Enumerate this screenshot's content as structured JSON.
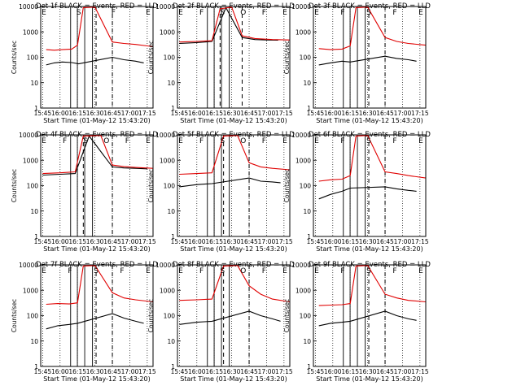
{
  "colors": {
    "events": "#000000",
    "lld": "#e00000",
    "background": "#ffffff"
  },
  "x_ticks": [
    "15:45",
    "16:00",
    "16:15",
    "16:30",
    "16:45",
    "17:00",
    "17:15"
  ],
  "y_ticks": [
    "1",
    "10",
    "100",
    "1000",
    "10000"
  ],
  "chart_data": [
    {
      "type": "line",
      "title": "Det 1f BLACK = Events, RED = LLD",
      "xlabel": "Start Time (01-May-12 15:43:20)",
      "ylabel": "Counts/sec",
      "xlim": [
        "15:43:20",
        "17:20:00"
      ],
      "ylim": [
        1,
        10000
      ],
      "yscale": "log",
      "annotations": [
        "E",
        "S",
        "F",
        "E"
      ],
      "dashed_markers": [
        "16:31",
        "16:45"
      ],
      "series": [
        {
          "name": "Events",
          "color": "#000000",
          "x": [
            "15:48",
            "15:55",
            "16:02",
            "16:10",
            "16:16",
            "16:45",
            "16:55",
            "17:05",
            "17:12"
          ],
          "y": [
            50,
            60,
            65,
            62,
            55,
            100,
            80,
            70,
            60
          ]
        },
        {
          "name": "LLD",
          "color": "#e00000",
          "x": [
            "15:48",
            "15:55",
            "16:02",
            "16:10",
            "16:15",
            "16:20",
            "16:30",
            "16:45",
            "16:55",
            "17:05",
            "17:15",
            "17:20"
          ],
          "y": [
            200,
            190,
            200,
            210,
            300,
            9000,
            9500,
            400,
            350,
            320,
            280,
            260
          ]
        }
      ]
    },
    {
      "type": "line",
      "title": "Det 2f BLACK = Events, RED = LLD",
      "xlabel": "Start Time (01-May-12 15:43:20)",
      "ylabel": "Counts/sec",
      "xlim": [
        "15:43:20",
        "17:20:00"
      ],
      "ylim": [
        1,
        10000
      ],
      "yscale": "log",
      "annotations": [
        "E",
        "F",
        "S",
        "O",
        "F",
        "E"
      ],
      "dashed_markers": [
        "16:20",
        "16:39"
      ],
      "series": [
        {
          "name": "Events",
          "color": "#000000",
          "x": [
            "15:45",
            "16:00",
            "16:13",
            "16:25",
            "16:39",
            "16:50",
            "17:00",
            "17:10"
          ],
          "y": [
            350,
            380,
            420,
            9000,
            600,
            500,
            480,
            470
          ]
        },
        {
          "name": "LLD",
          "color": "#e00000",
          "x": [
            "15:45",
            "16:00",
            "16:13",
            "16:20",
            "16:30",
            "16:39",
            "16:50",
            "17:05",
            "17:20"
          ],
          "y": [
            400,
            420,
            450,
            8000,
            9500,
            700,
            550,
            500,
            480
          ]
        }
      ]
    },
    {
      "type": "line",
      "title": "Det 3f BLACK = Events, RED = LLD",
      "xlabel": "Start Time (01-May-12 15:43:20)",
      "ylabel": "Counts/sec",
      "xlim": [
        "15:43:20",
        "17:20:00"
      ],
      "ylim": [
        1,
        10000
      ],
      "yscale": "log",
      "annotations": [
        "E",
        "F",
        "S",
        "F",
        "E"
      ],
      "dashed_markers": [
        "16:31",
        "16:45"
      ],
      "series": [
        {
          "name": "Events",
          "color": "#000000",
          "x": [
            "15:48",
            "15:58",
            "16:08",
            "16:15",
            "16:45",
            "16:55",
            "17:05",
            "17:12"
          ],
          "y": [
            50,
            60,
            70,
            65,
            110,
            90,
            80,
            70
          ]
        },
        {
          "name": "LLD",
          "color": "#e00000",
          "x": [
            "15:48",
            "15:58",
            "16:08",
            "16:15",
            "16:20",
            "16:30",
            "16:45",
            "16:55",
            "17:05",
            "17:20"
          ],
          "y": [
            220,
            200,
            210,
            280,
            9000,
            9500,
            600,
            420,
            350,
            300
          ]
        }
      ]
    },
    {
      "type": "line",
      "title": "Det 4f BLACK = Events, RED = LLD",
      "xlabel": "Start Time (01-May-12 15:43:20)",
      "ylabel": "Counts/sec",
      "xlim": [
        "15:43:20",
        "17:20:00"
      ],
      "ylim": [
        1,
        10000
      ],
      "yscale": "log",
      "annotations": [
        "E",
        "F",
        "S",
        "O",
        "F",
        "E"
      ],
      "dashed_markers": [
        "16:20",
        "16:45"
      ],
      "series": [
        {
          "name": "Events",
          "color": "#000000",
          "x": [
            "15:45",
            "16:00",
            "16:13",
            "16:25",
            "16:45",
            "16:55",
            "17:05",
            "17:15"
          ],
          "y": [
            260,
            280,
            300,
            9000,
            550,
            500,
            480,
            460
          ]
        },
        {
          "name": "LLD",
          "color": "#e00000",
          "x": [
            "15:45",
            "16:00",
            "16:13",
            "16:20",
            "16:35",
            "16:45",
            "16:55",
            "17:05",
            "17:20"
          ],
          "y": [
            300,
            320,
            350,
            9000,
            9500,
            650,
            560,
            520,
            480
          ]
        }
      ]
    },
    {
      "type": "line",
      "title": "Det 5f BLACK = Events, RED = LLD",
      "xlabel": "Start Time (01-May-12 15:43:20)",
      "ylabel": "Counts/sec",
      "xlim": [
        "15:43:20",
        "17:20:00"
      ],
      "ylim": [
        1,
        10000
      ],
      "yscale": "log",
      "annotations": [
        "E",
        "F",
        "S",
        "O",
        "F",
        "E"
      ],
      "dashed_markers": [
        "16:23",
        "16:45"
      ],
      "series": [
        {
          "name": "Events",
          "color": "#000000",
          "x": [
            "15:45",
            "16:00",
            "16:13",
            "16:45",
            "16:55",
            "17:05",
            "17:12"
          ],
          "y": [
            90,
            110,
            120,
            200,
            150,
            140,
            130
          ]
        },
        {
          "name": "LLD",
          "color": "#e00000",
          "x": [
            "15:45",
            "16:00",
            "16:13",
            "16:23",
            "16:35",
            "16:45",
            "16:55",
            "17:05",
            "17:20"
          ],
          "y": [
            280,
            300,
            320,
            9000,
            9500,
            800,
            550,
            480,
            420
          ]
        }
      ]
    },
    {
      "type": "line",
      "title": "Det 6f BLACK = Events, RED = LLD",
      "xlabel": "Start Time (01-May-12 15:43:20)",
      "ylabel": "Counts/sec",
      "xlim": [
        "15:43:20",
        "17:20:00"
      ],
      "ylim": [
        1,
        10000
      ],
      "yscale": "log",
      "annotations": [
        "E",
        "F",
        "S",
        "F",
        "E"
      ],
      "dashed_markers": [
        "16:31",
        "16:45"
      ],
      "series": [
        {
          "name": "Events",
          "color": "#000000",
          "x": [
            "15:48",
            "15:58",
            "16:08",
            "16:15",
            "16:45",
            "16:55",
            "17:05",
            "17:12"
          ],
          "y": [
            30,
            45,
            60,
            80,
            90,
            75,
            65,
            60
          ]
        },
        {
          "name": "LLD",
          "color": "#e00000",
          "x": [
            "15:48",
            "15:58",
            "16:08",
            "16:15",
            "16:20",
            "16:30",
            "16:45",
            "16:55",
            "17:05",
            "17:20"
          ],
          "y": [
            150,
            170,
            180,
            250,
            9000,
            9500,
            350,
            300,
            250,
            200
          ]
        }
      ]
    },
    {
      "type": "line",
      "title": "Det 7f BLACK = Events, RED = LLD",
      "xlabel": "Start Time (01-May-12 15:43:20)",
      "ylabel": "Counts/sec",
      "xlim": [
        "15:43:20",
        "17:20:00"
      ],
      "ylim": [
        1,
        10000
      ],
      "yscale": "log",
      "annotations": [
        "E",
        "F",
        "S",
        "F",
        "E"
      ],
      "dashed_markers": [
        "16:31",
        "16:45"
      ],
      "series": [
        {
          "name": "Events",
          "color": "#000000",
          "x": [
            "15:48",
            "15:58",
            "16:08",
            "16:15",
            "16:45",
            "16:55",
            "17:05",
            "17:12"
          ],
          "y": [
            30,
            40,
            45,
            50,
            120,
            80,
            60,
            50
          ]
        },
        {
          "name": "LLD",
          "color": "#e00000",
          "x": [
            "15:48",
            "15:58",
            "16:08",
            "16:15",
            "16:20",
            "16:30",
            "16:45",
            "16:55",
            "17:05",
            "17:20"
          ],
          "y": [
            280,
            300,
            290,
            320,
            9000,
            9500,
            800,
            500,
            420,
            350
          ]
        }
      ]
    },
    {
      "type": "line",
      "title": "Det 8f BLACK = Events, RED = LLD",
      "xlabel": "Start Time (01-May-12 15:43:20)",
      "ylabel": "Counts/sec",
      "xlim": [
        "15:43:20",
        "17:20:00"
      ],
      "ylim": [
        1,
        10000
      ],
      "yscale": "log",
      "annotations": [
        "E",
        "F",
        "S",
        "O",
        "F",
        "E"
      ],
      "dashed_markers": [
        "16:23",
        "16:45"
      ],
      "series": [
        {
          "name": "Events",
          "color": "#000000",
          "x": [
            "15:45",
            "16:00",
            "16:13",
            "16:45",
            "16:55",
            "17:05",
            "17:12"
          ],
          "y": [
            45,
            55,
            60,
            150,
            100,
            75,
            60
          ]
        },
        {
          "name": "LLD",
          "color": "#e00000",
          "x": [
            "15:45",
            "16:00",
            "16:13",
            "16:23",
            "16:35",
            "16:45",
            "16:55",
            "17:05",
            "17:20"
          ],
          "y": [
            400,
            420,
            450,
            9000,
            9500,
            1500,
            700,
            450,
            350
          ]
        }
      ]
    },
    {
      "type": "line",
      "title": "Det 9f BLACK = Events, RED = LLD",
      "xlabel": "Start Time (01-May-12 15:43:20)",
      "ylabel": "Counts/sec",
      "xlim": [
        "15:43:20",
        "17:20:00"
      ],
      "ylim": [
        1,
        10000
      ],
      "yscale": "log",
      "annotations": [
        "E",
        "F",
        "S",
        "F",
        "E"
      ],
      "dashed_markers": [
        "16:31",
        "16:45"
      ],
      "series": [
        {
          "name": "Events",
          "color": "#000000",
          "x": [
            "15:48",
            "15:58",
            "16:08",
            "16:15",
            "16:45",
            "16:55",
            "17:05",
            "17:12"
          ],
          "y": [
            40,
            50,
            55,
            60,
            150,
            100,
            75,
            65
          ]
        },
        {
          "name": "LLD",
          "color": "#e00000",
          "x": [
            "15:48",
            "15:58",
            "16:08",
            "16:15",
            "16:20",
            "16:30",
            "16:45",
            "16:55",
            "17:05",
            "17:20"
          ],
          "y": [
            250,
            260,
            270,
            300,
            9000,
            9500,
            700,
            500,
            400,
            350
          ]
        }
      ]
    }
  ]
}
